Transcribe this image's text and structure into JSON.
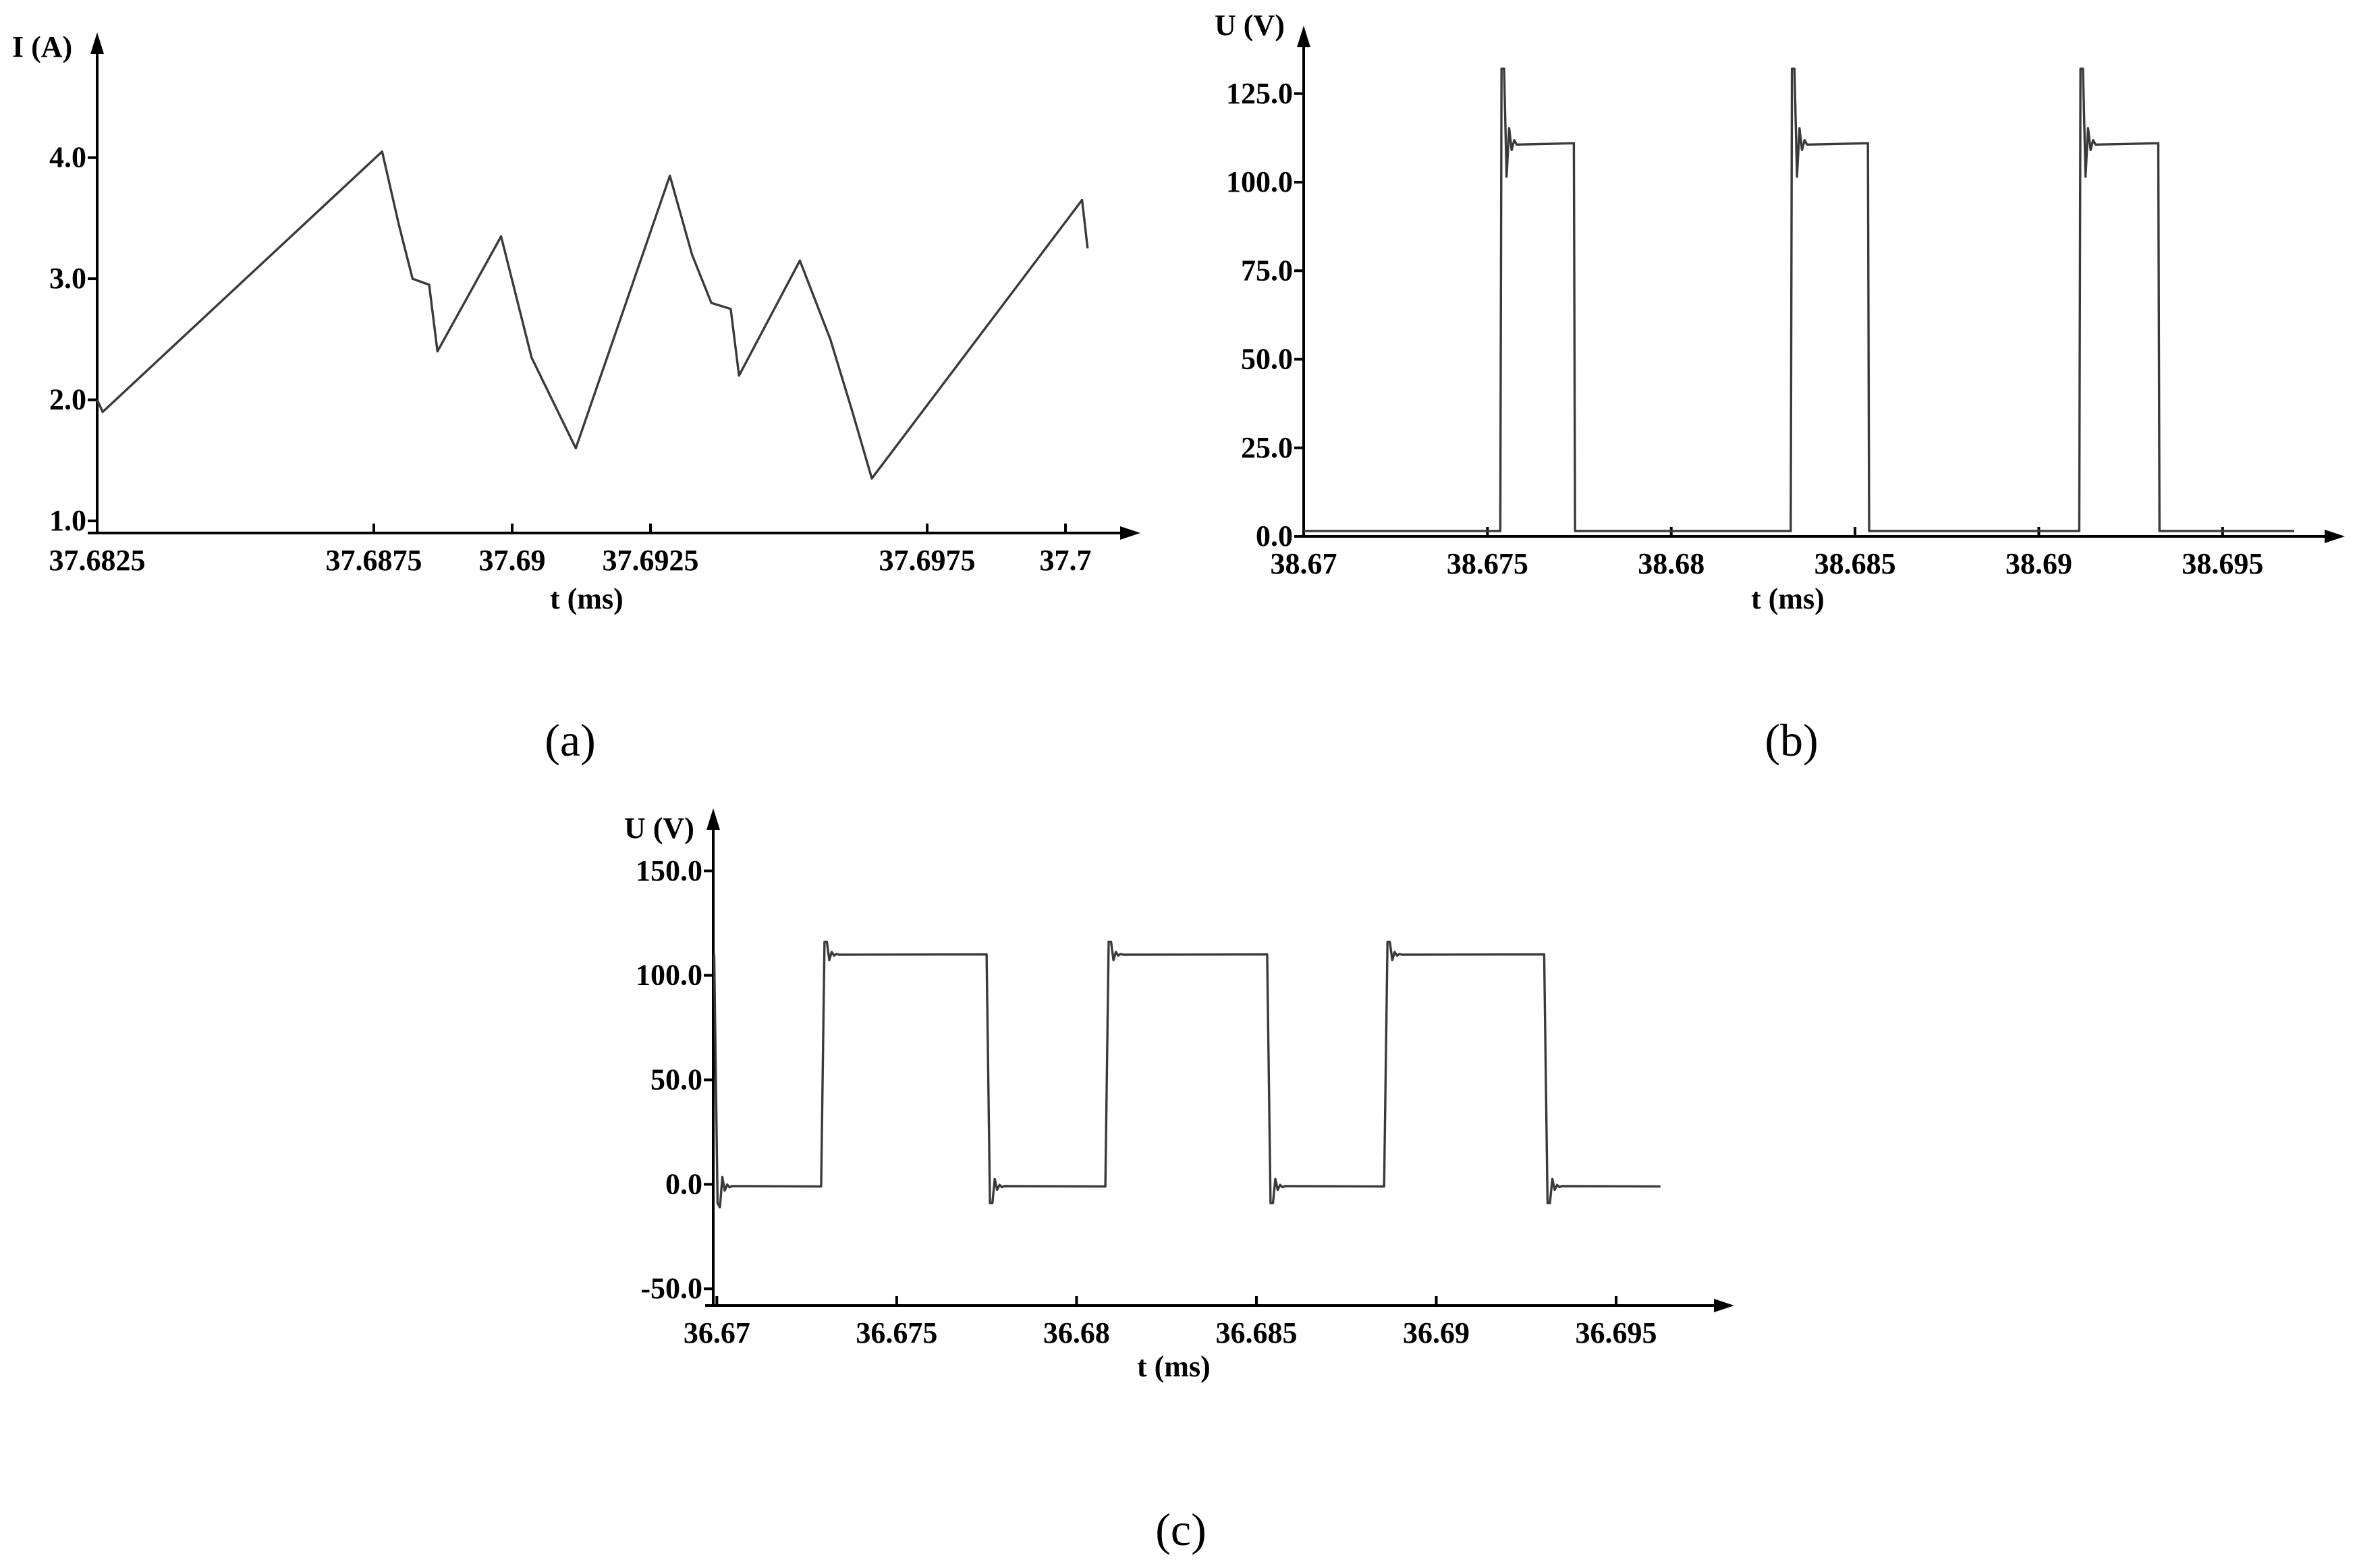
{
  "chart_data": [
    {
      "panel": "(a)",
      "type": "line",
      "ylabel": "I (A)",
      "xlabel": "t (ms)",
      "x_ticks": [
        "37.6825",
        "37.6875",
        "37.69",
        "37.6925",
        "37.6975",
        "37.7"
      ],
      "y_ticks": [
        "1.0",
        "2.0",
        "3.0",
        "4.0"
      ],
      "xlim": [
        37.6825,
        37.7005
      ],
      "ylim": [
        0.9,
        4.8
      ],
      "series": [
        {
          "x": [
            37.6825,
            37.6826,
            37.68765,
            37.68795,
            37.6882,
            37.6885,
            37.68865,
            37.6898,
            37.69035,
            37.69115,
            37.69285,
            37.69325,
            37.6936,
            37.69395,
            37.6941,
            37.6952,
            37.69575,
            37.69615,
            37.6965,
            37.7003,
            37.7004
          ],
          "y": [
            2.0,
            1.9,
            4.05,
            3.45,
            3.0,
            2.95,
            2.4,
            3.35,
            2.35,
            1.6,
            3.85,
            3.2,
            2.8,
            2.75,
            2.2,
            3.15,
            2.5,
            1.9,
            1.35,
            3.65,
            3.25
          ]
        }
      ]
    },
    {
      "panel": "(b)",
      "type": "line",
      "ylabel": "U (V)",
      "xlabel": "t (ms)",
      "x_ticks": [
        "38.67",
        "38.675",
        "38.68",
        "38.685",
        "38.69",
        "38.695"
      ],
      "y_ticks": [
        "0.0",
        "25.0",
        "50.0",
        "75.0",
        "100.0",
        "125.0"
      ],
      "xlim": [
        38.67,
        38.6975
      ],
      "ylim": [
        0,
        140
      ],
      "pulses": [
        {
          "rise": 38.67535,
          "fall": 38.67735
        },
        {
          "rise": 38.68325,
          "fall": 38.68535
        },
        {
          "rise": 38.6911,
          "fall": 38.69325
        }
      ],
      "low_level": 1.5,
      "high_level": 111,
      "overshoot_peak": 132
    },
    {
      "panel": "(c)",
      "type": "line",
      "ylabel": "U (V)",
      "xlabel": "t (ms)",
      "x_ticks": [
        "36.67",
        "36.675",
        "36.68",
        "36.685",
        "36.69",
        "36.695"
      ],
      "y_ticks": [
        "-50.0",
        "0.0",
        "50.0",
        "100.0",
        "150.0"
      ],
      "xlim": [
        36.6699,
        36.6965
      ],
      "ylim": [
        -58,
        168
      ],
      "pulses": [
        {
          "rise": 36.6729,
          "fall": 36.6775
        },
        {
          "rise": 36.6808,
          "fall": 36.6853
        },
        {
          "rise": 36.68855,
          "fall": 36.693
        }
      ],
      "low_level": -1,
      "high_level": 110,
      "overshoot_peak": 116,
      "undershoot": -9
    }
  ],
  "captions": {
    "a": "(a)",
    "b": "(b)",
    "c": "(c)"
  }
}
